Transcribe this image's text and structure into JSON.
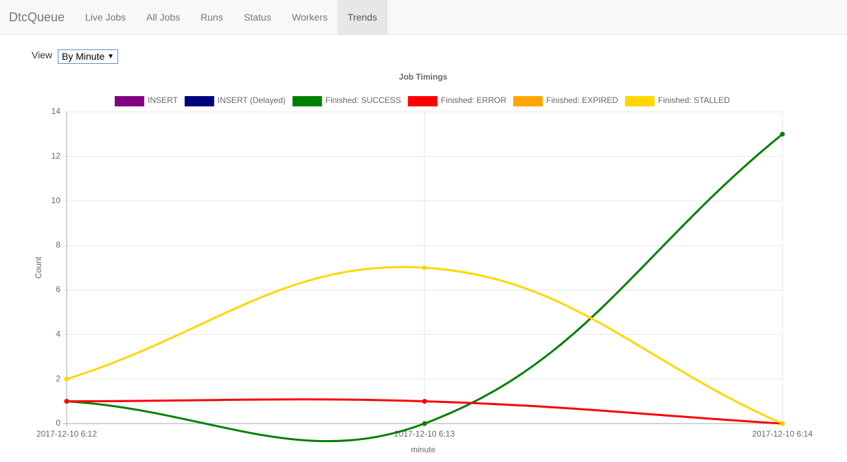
{
  "nav": {
    "brand": "DtcQueue",
    "items": [
      "Live Jobs",
      "All Jobs",
      "Runs",
      "Status",
      "Workers",
      "Trends"
    ],
    "active": 5
  },
  "view": {
    "label": "View",
    "selected": "By Minute"
  },
  "chart_data": {
    "type": "line",
    "title": "Job Timings",
    "x_label": "minute",
    "y_label": "Count",
    "categories": [
      "2017-12-10 6:12",
      "2017-12-10 6:13",
      "2017-12-10 6:14"
    ],
    "series": [
      {
        "name": "INSERT",
        "color": "#800080",
        "values": [
          null,
          null,
          null
        ]
      },
      {
        "name": "INSERT (Delayed)",
        "color": "#000080",
        "values": [
          null,
          null,
          null
        ]
      },
      {
        "name": "Finished: SUCCESS",
        "color": "#008000",
        "values": [
          1,
          0,
          13
        ]
      },
      {
        "name": "Finished: ERROR",
        "color": "#ff0000",
        "values": [
          1,
          1,
          0
        ]
      },
      {
        "name": "Finished: EXPIRED",
        "color": "#ffa500",
        "values": [
          null,
          null,
          null
        ]
      },
      {
        "name": "Finished: STALLED",
        "color": "#ffd700",
        "values": [
          2,
          7,
          0
        ]
      }
    ],
    "ylim": [
      0,
      14
    ],
    "yticks": [
      0,
      2,
      4,
      6,
      8,
      10,
      12,
      14
    ],
    "grid": true
  }
}
